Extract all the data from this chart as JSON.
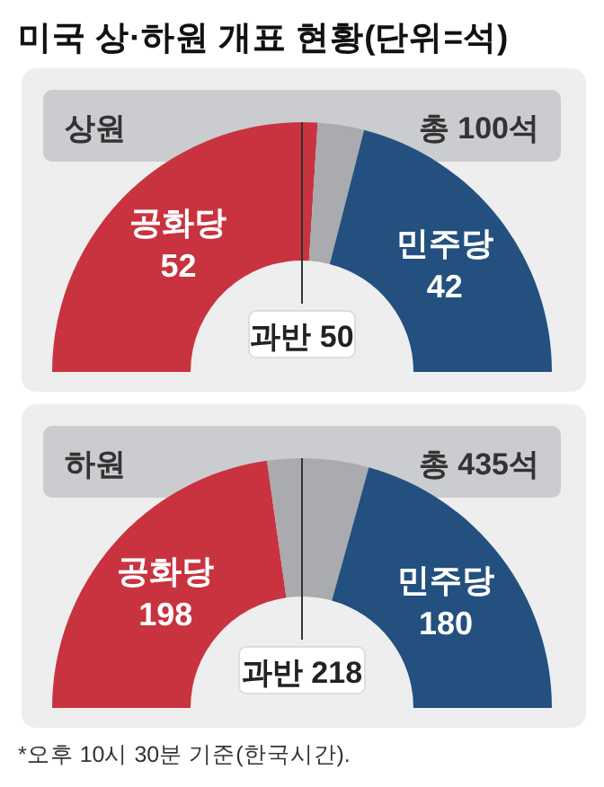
{
  "chart_data": [
    {
      "type": "donut",
      "title": "미국 상·하원 개표 현황(단위=석)",
      "subtitle": "상원",
      "annotations": [
        "총 100석",
        "과반 50"
      ],
      "categories": [
        "공화당",
        null,
        "민주당"
      ],
      "values": [
        52,
        6,
        42
      ],
      "colors": [
        "#c9333f",
        "#a9abae",
        "#23507f"
      ],
      "value_labels": [
        "52",
        null,
        "42"
      ]
    },
    {
      "type": "donut",
      "subtitle": "하원",
      "annotations": [
        "총 435석",
        "과반 218",
        "*오후 10시 30분 기준(한국시간). "
      ],
      "categories": [
        "공화당",
        null,
        "민주당"
      ],
      "values": [
        198,
        57,
        180
      ],
      "colors": [
        "#c9333f",
        "#a9abae",
        "#23507f"
      ],
      "value_labels": [
        "198",
        null,
        "180"
      ]
    }
  ]
}
